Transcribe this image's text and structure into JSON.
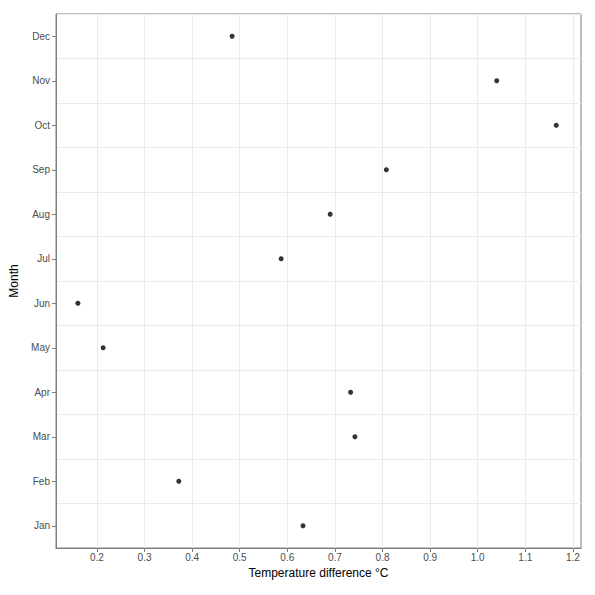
{
  "chart_data": {
    "type": "scatter",
    "xlabel": "Temperature difference °C",
    "ylabel": "Month",
    "categories": [
      "Jan",
      "Feb",
      "Mar",
      "Apr",
      "May",
      "Jun",
      "Jul",
      "Aug",
      "Sep",
      "Oct",
      "Nov",
      "Dec"
    ],
    "values": [
      0.633,
      0.372,
      0.742,
      0.733,
      0.213,
      0.16,
      0.587,
      0.69,
      0.808,
      1.165,
      1.04,
      0.484
    ],
    "color": "#000000",
    "xlim": [
      0.114,
      1.217
    ],
    "xticks": [
      0.2,
      0.3,
      0.4,
      0.5,
      0.6,
      0.7,
      0.8,
      0.9,
      {
        "value": 1,
        "label": "1.0"
      },
      1.1,
      1.2
    ],
    "grid": true
  }
}
